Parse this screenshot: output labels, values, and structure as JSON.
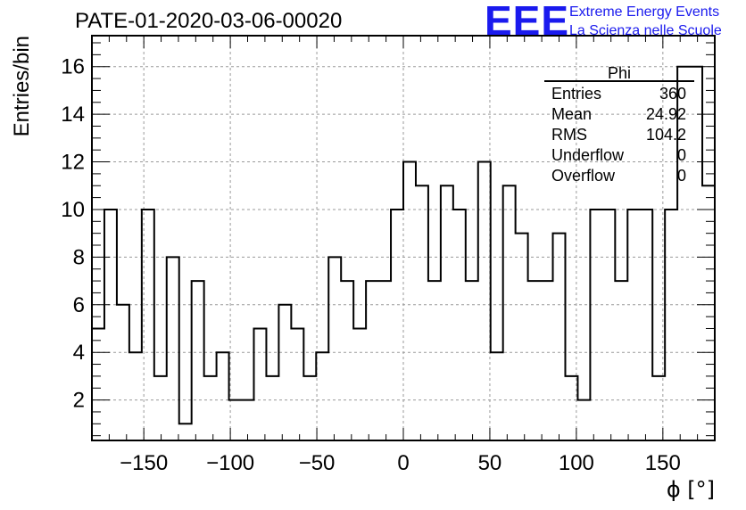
{
  "header": {
    "run_title": "PATE-01-2020-03-06-00020",
    "logo_mark": "EEE",
    "logo_line1": "Extreme Energy Events",
    "logo_line2": "La Scienza nelle Scuole",
    "brand_color": "#1a1aee"
  },
  "chart_data": {
    "type": "histogram",
    "xlabel": "ϕ [°]",
    "ylabel": "Entries/bin",
    "xlim": [
      -180,
      180
    ],
    "ylim": [
      0.3,
      17.3
    ],
    "x_ticks": [
      -150,
      -100,
      -50,
      0,
      50,
      100,
      150
    ],
    "y_ticks": [
      2,
      4,
      6,
      8,
      10,
      12,
      14,
      16
    ],
    "grid": true,
    "bin_width": 7.2,
    "bin_edges_start": -180,
    "values": [
      5,
      10,
      6,
      4,
      10,
      3,
      8,
      1,
      7,
      3,
      4,
      2,
      2,
      5,
      3,
      6,
      5,
      3,
      4,
      8,
      7,
      5,
      7,
      7,
      10,
      12,
      11,
      7,
      11,
      10,
      7,
      12,
      4,
      11,
      9,
      7,
      7,
      9,
      3,
      2,
      10,
      10,
      7,
      10,
      10,
      3,
      10,
      16,
      16,
      11
    ],
    "line_color": "#000000",
    "stats_box": {
      "title": "Phi",
      "rows": [
        {
          "label": "Entries",
          "value": "360"
        },
        {
          "label": "Mean",
          "value": "24.92"
        },
        {
          "label": "RMS",
          "value": "104.2"
        },
        {
          "label": "Underflow",
          "value": "0"
        },
        {
          "label": "Overflow",
          "value": "0"
        }
      ]
    }
  }
}
